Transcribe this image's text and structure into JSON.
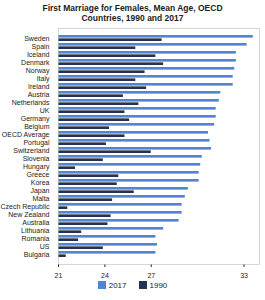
{
  "chart_data": {
    "type": "bar",
    "orientation": "horizontal",
    "title": "First Marriage for Females, Mean Age, OECD Countries, 1990 and 2017",
    "categories": [
      "Sweden",
      "Spain",
      "Iceland",
      "Denmark",
      "Norway",
      "Italy",
      "Ireland",
      "Austria",
      "Netherlands",
      "UK",
      "Germany",
      "Belgium",
      "OECD Average",
      "Portugal",
      "Switzerland",
      "Slovenia",
      "Hungary",
      "Greece",
      "Korea",
      "Japan",
      "Malta",
      "Czech Republic",
      "New Zealand",
      "Australia",
      "Lithuania",
      "Romania",
      "US",
      "Bulgaria"
    ],
    "series": [
      {
        "name": "2017",
        "color": "#4f86d4",
        "values": [
          33.6,
          33.2,
          32.5,
          32.5,
          32.4,
          32.3,
          32.3,
          31.5,
          31.4,
          31.2,
          31.2,
          31.1,
          30.7,
          30.8,
          30.9,
          30.3,
          30.2,
          30.1,
          30.1,
          29.4,
          29.2,
          29.0,
          29.0,
          28.8,
          27.8,
          27.3,
          27.4,
          27.3
        ]
      },
      {
        "name": "1990",
        "color": "#243354",
        "values": [
          27.7,
          26.0,
          27.3,
          27.8,
          26.6,
          26.0,
          26.7,
          25.2,
          26.2,
          25.3,
          25.6,
          24.3,
          25.3,
          24.1,
          27.0,
          23.9,
          22.1,
          24.9,
          24.8,
          25.9,
          24.5,
          21.6,
          24.4,
          24.2,
          22.5,
          22.3,
          23.9,
          21.5
        ]
      }
    ],
    "xlim": [
      21,
      34
    ],
    "xticks": [
      21,
      24,
      27,
      33
    ],
    "grid": false,
    "legend": "bottom"
  }
}
